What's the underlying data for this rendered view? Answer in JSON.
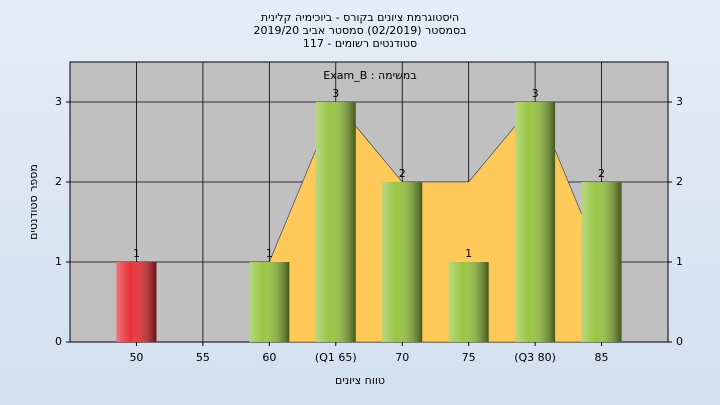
{
  "chart_data": {
    "type": "bar",
    "title": [
      "היסטוגרמת ציונים בקורס - ביוכימיה קלינית",
      "בסמסטר  (02/2019)  סמסטר אביב 2019/20",
      "סטודנטים רשומים - 117"
    ],
    "subtitle": "במשימה : Exam_B",
    "x_label": "טווח ציונים",
    "y_label": "מספר סטודנטים",
    "categories": [
      "50",
      "55",
      "60",
      "(Q1 65)",
      "70",
      "75",
      "(Q3 80)",
      "85"
    ],
    "values": [
      1,
      null,
      1,
      3,
      2,
      1,
      3,
      2
    ],
    "colors": [
      "#e8262d",
      "#93c23a",
      "#93c23a",
      "#93c23a",
      "#93c23a",
      "#93c23a",
      "#93c23a",
      "#93c23a"
    ],
    "area": {
      "color": "#ffc95a",
      "values": [
        null,
        null,
        1,
        3,
        2,
        2,
        3,
        1
      ]
    },
    "ylim": [
      0,
      3.5
    ],
    "yticks": [
      0,
      1,
      2,
      3
    ],
    "grid": true
  }
}
